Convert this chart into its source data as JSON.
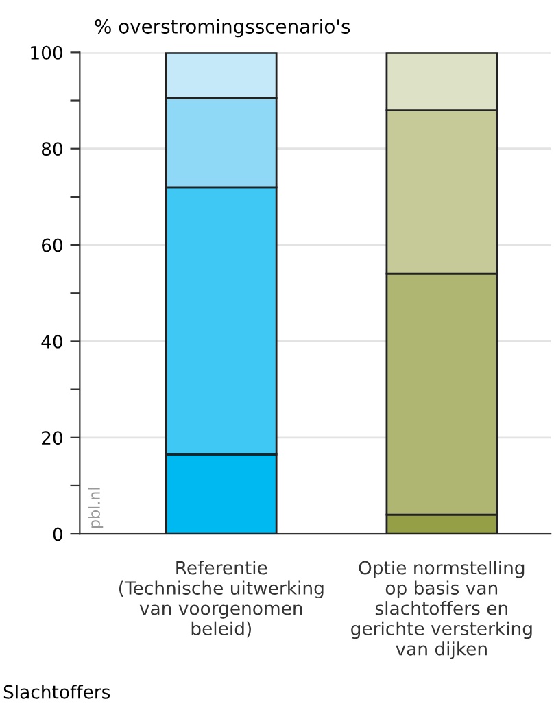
{
  "chart_data": {
    "type": "bar",
    "stacked": true,
    "ylabel": "% overstromingsscenario's",
    "categories": [
      "Referentie\n(Technische uitwerking\nvan voorgenomen\nbeleid)",
      "Optie normstelling\nop basis van\nslachtoffers en\ngerichte versterking\nvan dijken"
    ],
    "series": [
      {
        "colors": [
          "#00b9f0",
          "#959f45"
        ],
        "values": [
          16.5,
          4
        ]
      },
      {
        "colors": [
          "#40c8f4",
          "#afb671"
        ],
        "values": [
          55.5,
          50
        ]
      },
      {
        "colors": [
          "#8fd8f6",
          "#c6ca98"
        ],
        "values": [
          18.5,
          34
        ]
      },
      {
        "colors": [
          "#c6e9f9",
          "#dde1c5"
        ],
        "values": [
          9.5,
          12
        ]
      }
    ],
    "ylim": [
      0,
      100
    ],
    "yticks": [
      0,
      {
        "value": 10,
        "label": null
      },
      20,
      {
        "value": 30,
        "label": null
      },
      40,
      {
        "value": 50,
        "label": null
      },
      60,
      {
        "value": 70,
        "label": null
      },
      80,
      {
        "value": 90,
        "label": null
      },
      100
    ],
    "grid": "y",
    "annotations": [
      "pbl.nl",
      "Slachtoffers"
    ]
  }
}
